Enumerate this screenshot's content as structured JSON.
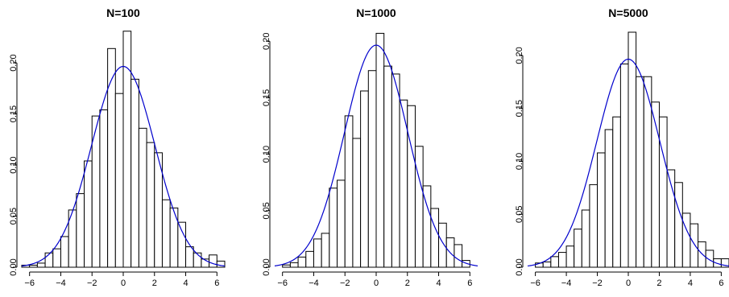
{
  "chart_data": [
    {
      "type": "bar",
      "title": "N=100",
      "xlim": [
        -6.5,
        6.5
      ],
      "ylim": [
        0,
        0.23
      ],
      "xticks": [
        "-6",
        "-4",
        "-2",
        "0",
        "2",
        "4",
        "6"
      ],
      "yticks": [
        "0.00",
        "0.05",
        "0.10",
        "0.15",
        "0.20"
      ],
      "bin_edges": [
        -6.5,
        -6.0,
        -5.5,
        -5.0,
        -4.5,
        -4.0,
        -3.5,
        -3.0,
        -2.5,
        -2.0,
        -1.5,
        -1.0,
        -0.5,
        0.0,
        0.5,
        1.0,
        1.5,
        2.0,
        2.5,
        3.0,
        3.5,
        4.0,
        4.5,
        5.0,
        5.5,
        6.0,
        6.5
      ],
      "values": [
        0.002,
        0.002,
        0.004,
        0.014,
        0.018,
        0.03,
        0.056,
        0.072,
        0.104,
        0.148,
        0.154,
        0.214,
        0.17,
        0.231,
        0.184,
        0.136,
        0.122,
        0.112,
        0.066,
        0.058,
        0.044,
        0.02,
        0.014,
        0.008,
        0.012,
        0.006
      ],
      "curve": {
        "type": "normal-density",
        "mean": 0,
        "sd": 2.03,
        "color": "#0000cc"
      }
    },
    {
      "type": "bar",
      "title": "N=1000",
      "xlim": [
        -6.5,
        6.5
      ],
      "ylim": [
        0,
        0.208
      ],
      "xticks": [
        "-6",
        "-4",
        "-2",
        "0",
        "2",
        "4",
        "6"
      ],
      "yticks": [
        "0.00",
        "0.05",
        "0.10",
        "0.15",
        "0.20"
      ],
      "bin_edges": [
        -6.0,
        -5.5,
        -5.0,
        -4.5,
        -4.0,
        -3.5,
        -3.0,
        -2.5,
        -2.0,
        -1.5,
        -1.0,
        -0.5,
        0.0,
        0.5,
        1.0,
        1.5,
        2.0,
        2.5,
        3.0,
        3.5,
        4.0,
        4.5,
        5.0,
        5.5,
        6.0
      ],
      "values": [
        0.002,
        0.004,
        0.009,
        0.014,
        0.025,
        0.03,
        0.07,
        0.077,
        0.134,
        0.114,
        0.156,
        0.174,
        0.207,
        0.178,
        0.171,
        0.148,
        0.143,
        0.107,
        0.072,
        0.052,
        0.039,
        0.026,
        0.02,
        0.006
      ],
      "curve": {
        "type": "normal-density",
        "mean": 0,
        "sd": 2.03,
        "color": "#0000cc"
      }
    },
    {
      "type": "bar",
      "title": "N=5000",
      "xlim": [
        -6.5,
        6.5
      ],
      "ylim": [
        0,
        0.222
      ],
      "xticks": [
        "-6",
        "-4",
        "-2",
        "0",
        "2",
        "4",
        "6"
      ],
      "yticks": [
        "0.00",
        "0.05",
        "0.10",
        "0.15",
        "0.20"
      ],
      "bin_edges": [
        -6.0,
        -5.5,
        -5.0,
        -4.5,
        -4.0,
        -3.5,
        -3.0,
        -2.5,
        -2.0,
        -1.5,
        -1.0,
        -0.5,
        0.0,
        0.5,
        1.0,
        1.5,
        2.0,
        2.5,
        3.0,
        3.5,
        4.0,
        4.5,
        5.0,
        5.5,
        6.0,
        6.5
      ],
      "values": [
        0.004,
        0.005,
        0.01,
        0.014,
        0.02,
        0.036,
        0.054,
        0.078,
        0.108,
        0.13,
        0.142,
        0.192,
        0.222,
        0.18,
        0.18,
        0.156,
        0.142,
        0.092,
        0.08,
        0.051,
        0.041,
        0.024,
        0.016,
        0.008,
        0.008,
        0.002
      ],
      "curve": {
        "type": "normal-density",
        "mean": 0,
        "sd": 2.03,
        "color": "#0000cc"
      }
    }
  ]
}
